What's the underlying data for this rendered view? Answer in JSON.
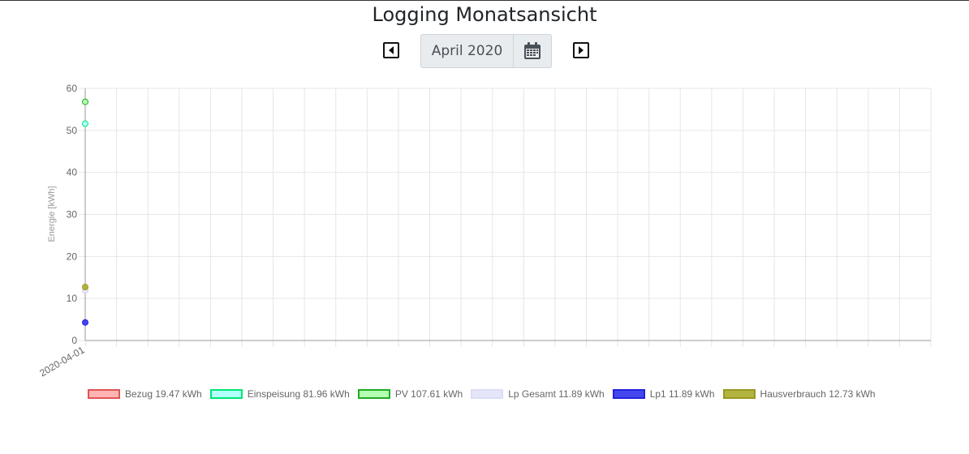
{
  "header": {
    "title": "Logging Monatsansicht",
    "month_value": "April 2020"
  },
  "icons": {
    "prev": "caret-left-square-icon",
    "next": "caret-right-square-icon",
    "calendar": "calendar-icon"
  },
  "chart_data": {
    "type": "line",
    "ylabel": "Energie [kWh]",
    "xlabel": "",
    "ylim": [
      0,
      60
    ],
    "yticks": [
      "0",
      "10",
      "20",
      "30",
      "40",
      "50",
      "60"
    ],
    "x": [
      "2020-04-01"
    ],
    "x_slots": 27,
    "grid": true,
    "legend_position": "bottom",
    "series": [
      {
        "name": "Bezug",
        "legend_text": "Bezug 19.47 kWh",
        "values": [
          11.9
        ],
        "color": "#e05555",
        "fill": "#ffb3b3"
      },
      {
        "name": "Einspeisung",
        "legend_text": "Einspeisung 81.96 kWh",
        "values": [
          51.6
        ],
        "color": "#00e676",
        "fill": "#b3ffff"
      },
      {
        "name": "PV",
        "legend_text": "PV 107.61 kWh",
        "values": [
          56.8
        ],
        "color": "#22aa22",
        "fill": "#b3ffb3"
      },
      {
        "name": "Lp Gesamt",
        "legend_text": "Lp Gesamt 11.89 kWh",
        "values": [
          11.89
        ],
        "color": "#dcdcf5",
        "fill": "#e6e6fa"
      },
      {
        "name": "Lp1",
        "legend_text": "Lp1 11.89 kWh",
        "values": [
          4.3
        ],
        "color": "#2222dd",
        "fill": "#4646ee"
      },
      {
        "name": "Hausverbrauch",
        "legend_text": "Hausverbrauch 12.73 kWh",
        "values": [
          12.73
        ],
        "color": "#999922",
        "fill": "#b3b33f"
      }
    ]
  }
}
